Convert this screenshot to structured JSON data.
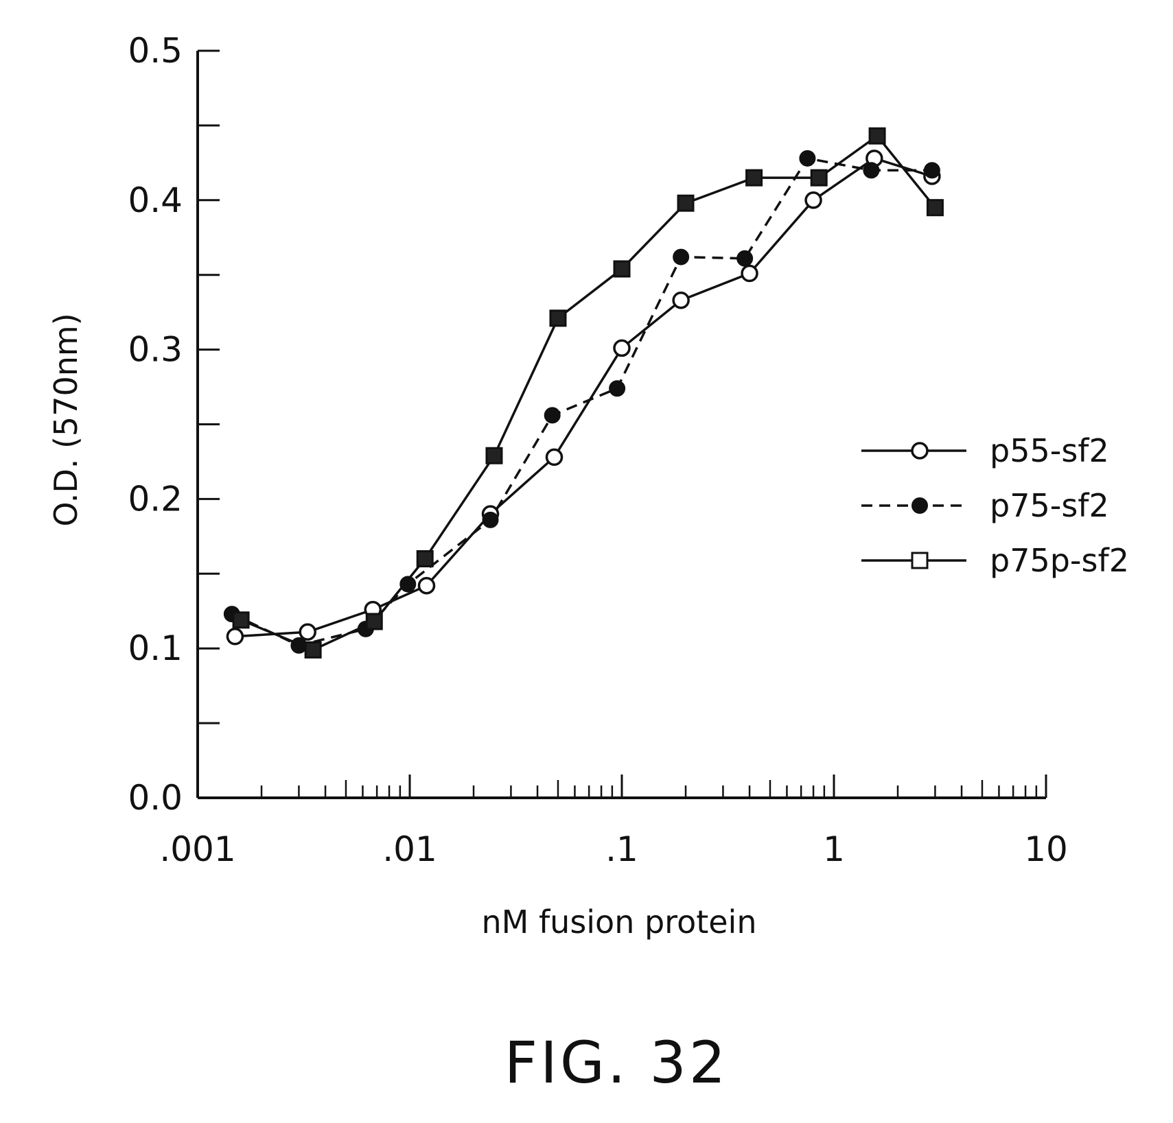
{
  "chart_data": {
    "type": "line",
    "title": "",
    "xlabel": "nM fusion protein",
    "ylabel": "O.D. (570nm)",
    "x_scale": "log",
    "xlim": [
      0.001,
      10
    ],
    "ylim": [
      0.0,
      0.5
    ],
    "x_ticks": [
      {
        "value": 0.001,
        "label": ".001"
      },
      {
        "value": 0.01,
        "label": ".01"
      },
      {
        "value": 0.1,
        "label": ".1"
      },
      {
        "value": 1,
        "label": "1"
      },
      {
        "value": 10,
        "label": "10"
      }
    ],
    "y_ticks": [
      {
        "value": 0.0,
        "label": "0.0"
      },
      {
        "value": 0.1,
        "label": "0.1"
      },
      {
        "value": 0.2,
        "label": "0.2"
      },
      {
        "value": 0.3,
        "label": "0.3"
      },
      {
        "value": 0.4,
        "label": "0.4"
      },
      {
        "value": 0.5,
        "label": "0.5"
      }
    ],
    "grid": false,
    "legend_position": "right",
    "series": [
      {
        "name": "p55-sf2",
        "marker": "open-circle",
        "line": "solid",
        "points": [
          [
            0.0015,
            0.108
          ],
          [
            0.0033,
            0.111
          ],
          [
            0.0067,
            0.126
          ],
          [
            0.012,
            0.142
          ],
          [
            0.024,
            0.19
          ],
          [
            0.048,
            0.228
          ],
          [
            0.1,
            0.301
          ],
          [
            0.19,
            0.333
          ],
          [
            0.4,
            0.351
          ],
          [
            0.8,
            0.4
          ],
          [
            1.55,
            0.428
          ],
          [
            2.9,
            0.416
          ]
        ]
      },
      {
        "name": "p75-sf2",
        "marker": "filled-circle",
        "line": "dashed",
        "points": [
          [
            0.00145,
            0.123
          ],
          [
            0.003,
            0.102
          ],
          [
            0.0062,
            0.113
          ],
          [
            0.0098,
            0.143
          ],
          [
            0.024,
            0.186
          ],
          [
            0.047,
            0.256
          ],
          [
            0.095,
            0.274
          ],
          [
            0.19,
            0.362
          ],
          [
            0.38,
            0.361
          ],
          [
            0.75,
            0.428
          ],
          [
            1.5,
            0.42
          ],
          [
            2.9,
            0.42
          ]
        ]
      },
      {
        "name": "p75p-sf2",
        "marker": "open-square",
        "line": "solid",
        "points": [
          [
            0.0016,
            0.119
          ],
          [
            0.0035,
            0.099
          ],
          [
            0.0068,
            0.118
          ],
          [
            0.0118,
            0.16
          ],
          [
            0.025,
            0.229
          ],
          [
            0.05,
            0.321
          ],
          [
            0.1,
            0.354
          ],
          [
            0.2,
            0.398
          ],
          [
            0.42,
            0.415
          ],
          [
            0.85,
            0.415
          ],
          [
            1.6,
            0.443
          ],
          [
            3.0,
            0.395
          ]
        ]
      }
    ]
  },
  "figure_label": "FIG. 32"
}
